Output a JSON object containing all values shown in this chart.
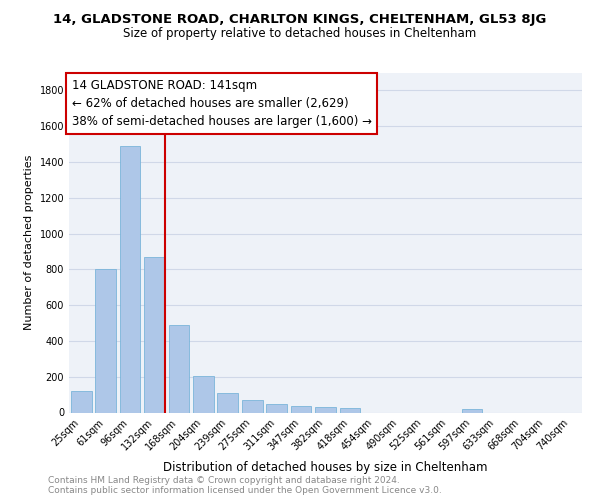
{
  "title1": "14, GLADSTONE ROAD, CHARLTON KINGS, CHELTENHAM, GL53 8JG",
  "title2": "Size of property relative to detached houses in Cheltenham",
  "xlabel": "Distribution of detached houses by size in Cheltenham",
  "ylabel": "Number of detached properties",
  "categories": [
    "25sqm",
    "61sqm",
    "96sqm",
    "132sqm",
    "168sqm",
    "204sqm",
    "239sqm",
    "275sqm",
    "311sqm",
    "347sqm",
    "382sqm",
    "418sqm",
    "454sqm",
    "490sqm",
    "525sqm",
    "561sqm",
    "597sqm",
    "633sqm",
    "668sqm",
    "704sqm",
    "740sqm"
  ],
  "values": [
    120,
    800,
    1490,
    870,
    490,
    205,
    110,
    70,
    48,
    35,
    28,
    23,
    0,
    0,
    0,
    0,
    18,
    0,
    0,
    0,
    0
  ],
  "bar_color": "#aec7e8",
  "bar_edge_color": "#6baed6",
  "vline_x_index": 3,
  "vline_color": "#cc0000",
  "annotation_lines": [
    "14 GLADSTONE ROAD: 141sqm",
    "← 62% of detached houses are smaller (2,629)",
    "38% of semi-detached houses are larger (1,600) →"
  ],
  "annotation_box_color": "#ffffff",
  "annotation_box_edge": "#cc0000",
  "ylim": [
    0,
    1900
  ],
  "yticks": [
    0,
    200,
    400,
    600,
    800,
    1000,
    1200,
    1400,
    1600,
    1800
  ],
  "grid_color": "#d0d8e8",
  "bg_color": "#eef2f8",
  "footer": "Contains HM Land Registry data © Crown copyright and database right 2024.\nContains public sector information licensed under the Open Government Licence v3.0.",
  "title1_fontsize": 9.5,
  "title2_fontsize": 8.5,
  "xlabel_fontsize": 8.5,
  "ylabel_fontsize": 8,
  "tick_fontsize": 7,
  "footer_fontsize": 6.5,
  "annotation_fontsize": 8.5
}
